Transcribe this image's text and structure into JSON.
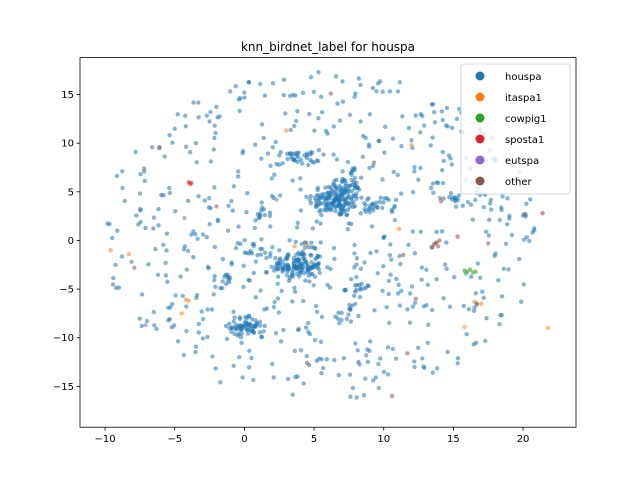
{
  "chart_data": {
    "type": "scatter",
    "title": "knn_birdnet_label for houspa",
    "xlabel": "",
    "ylabel": "",
    "xlim": [
      -11.8,
      23.8
    ],
    "ylim": [
      -19.2,
      18.8
    ],
    "xticks": [
      -10,
      -5,
      0,
      5,
      10,
      15,
      20
    ],
    "yticks": [
      -15,
      -10,
      -5,
      0,
      5,
      10,
      15
    ],
    "xtick_labels": [
      "−10",
      "−5",
      "0",
      "5",
      "10",
      "15",
      "20"
    ],
    "ytick_labels": [
      "−15",
      "−10",
      "−5",
      "0",
      "5",
      "10",
      "15"
    ],
    "grid": false,
    "legend_position": "top-right",
    "series": [
      {
        "name": "houspa",
        "color": "#1f77b4",
        "clusters": [
          {
            "center": [
              6.6,
              4.2
            ],
            "spread": [
              1.0,
              0.9
            ],
            "count": 150
          },
          {
            "center": [
              3.8,
              -2.6
            ],
            "spread": [
              0.9,
              0.8
            ],
            "count": 130
          },
          {
            "center": [
              0.2,
              -8.8
            ],
            "spread": [
              0.6,
              0.5
            ],
            "count": 60
          },
          {
            "center": [
              3.8,
              8.5
            ],
            "spread": [
              0.8,
              0.4
            ],
            "count": 35
          },
          {
            "center": [
              7.5,
              6.3
            ],
            "spread": [
              0.6,
              0.7
            ],
            "count": 25
          },
          {
            "center": [
              9.2,
              3.5
            ],
            "spread": [
              0.5,
              0.5
            ],
            "count": 20
          },
          {
            "center": [
              8.3,
              -5.0
            ],
            "spread": [
              0.5,
              0.3
            ],
            "count": 15
          },
          {
            "center": [
              7.1,
              -7.5
            ],
            "spread": [
              0.3,
              0.4
            ],
            "count": 12
          },
          {
            "center": [
              -1.1,
              -4.0
            ],
            "spread": [
              0.2,
              0.3
            ],
            "count": 10
          },
          {
            "center": [
              1.0,
              -1.0
            ],
            "spread": [
              1.0,
              0.3
            ],
            "count": 14
          },
          {
            "center": [
              15.1,
              4.3
            ],
            "spread": [
              0.4,
              0.3
            ],
            "count": 10
          },
          {
            "center": [
              1.3,
              2.6
            ],
            "spread": [
              0.3,
              0.4
            ],
            "count": 8
          }
        ],
        "background_count": 620,
        "background_center": [
          5.5,
          0.5
        ],
        "background_radius": [
          15.8,
          17.0
        ],
        "points": []
      },
      {
        "name": "itaspa1",
        "color": "#ff7f0e",
        "points": [
          [
            -9.6,
            -1.0
          ],
          [
            -8.3,
            -1.4
          ],
          [
            -4.2,
            -6.1
          ],
          [
            -4.0,
            -6.2
          ],
          [
            3.6,
            -0.6
          ],
          [
            15.8,
            -8.9
          ],
          [
            16.5,
            -6.3
          ],
          [
            17.0,
            -6.5
          ],
          [
            21.8,
            -9.0
          ],
          [
            12.0,
            9.8
          ],
          [
            11.1,
            1.2
          ],
          [
            4.4,
            -0.4
          ],
          [
            3.0,
            11.3
          ],
          [
            -4.5,
            -7.5
          ]
        ]
      },
      {
        "name": "cowpig1",
        "color": "#2ca02c",
        "points": [
          [
            15.8,
            -3.1
          ],
          [
            16.0,
            -3.2
          ],
          [
            16.2,
            -3.0
          ],
          [
            16.4,
            -3.3
          ],
          [
            15.9,
            -3.4
          ],
          [
            16.6,
            -3.2
          ]
        ]
      },
      {
        "name": "sposta1",
        "color": "#d62728",
        "points": [
          [
            -4.0,
            6.0
          ],
          [
            -3.8,
            5.9
          ],
          [
            -3.9,
            5.8
          ],
          [
            15.3,
            0.4
          ],
          [
            21.4,
            2.8
          ]
        ]
      },
      {
        "name": "eutspa",
        "color": "#9467bd",
        "points": [
          [
            2.3,
            4.2
          ],
          [
            -4.3,
            2.3
          ],
          [
            -7.1,
            -8.7
          ]
        ]
      },
      {
        "name": "other",
        "color": "#8c564b",
        "points": [
          [
            13.6,
            -0.4
          ],
          [
            13.9,
            -0.6
          ],
          [
            13.8,
            -0.2
          ],
          [
            13.5,
            -0.7
          ],
          [
            14.0,
            0.0
          ],
          [
            13.7,
            -0.3
          ],
          [
            14.1,
            4.0
          ],
          [
            14.3,
            4.3
          ],
          [
            17.2,
            10.9
          ],
          [
            20.1,
            2.7
          ],
          [
            -7.2,
            7.4
          ],
          [
            -7.9,
            -2.8
          ],
          [
            11.4,
            -1.5
          ],
          [
            6.2,
            15.1
          ],
          [
            4.5,
            -12.6
          ],
          [
            16.7,
            -6.6
          ],
          [
            10.6,
            -16.0
          ],
          [
            11.7,
            -11.6
          ],
          [
            -2.0,
            3.5
          ],
          [
            -6.1,
            9.5
          ],
          [
            12.3,
            -6.0
          ],
          [
            9.3,
            8.0
          ],
          [
            17.5,
            -0.3
          ]
        ]
      }
    ]
  }
}
